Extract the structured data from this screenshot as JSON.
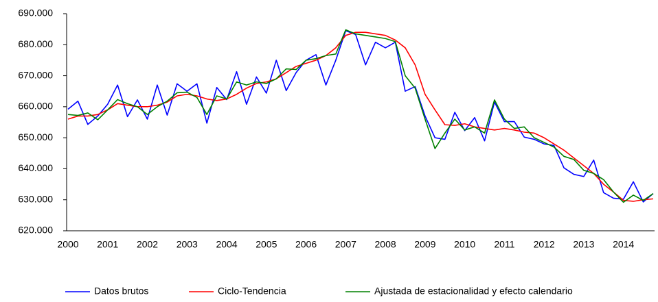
{
  "chart_data": {
    "type": "line",
    "categories": [
      "2000",
      null,
      null,
      null,
      "2001",
      null,
      null,
      null,
      "2002",
      null,
      null,
      null,
      "2003",
      null,
      null,
      null,
      "2004",
      null,
      null,
      null,
      "2005",
      null,
      null,
      null,
      "2006",
      null,
      null,
      null,
      "2007",
      null,
      null,
      null,
      "2008",
      null,
      null,
      null,
      "2009",
      null,
      null,
      null,
      "2010",
      null,
      null,
      null,
      "2011",
      null,
      null,
      null,
      "2012",
      null,
      null,
      null,
      "2013",
      null,
      null,
      null,
      "2014",
      null,
      null,
      null
    ],
    "series": [
      {
        "name": "Datos brutos",
        "color": "#0000ff",
        "values": [
          659200,
          661800,
          654300,
          657000,
          660800,
          667000,
          656800,
          662200,
          656000,
          667000,
          657300,
          667400,
          665000,
          667400,
          654700,
          666200,
          662300,
          671300,
          660800,
          669600,
          664400,
          675000,
          665200,
          671000,
          675000,
          676800,
          667000,
          675000,
          684500,
          683300,
          673500,
          680800,
          679000,
          680800,
          665000,
          666500,
          657000,
          650000,
          649500,
          658200,
          652300,
          656500,
          649000,
          661500,
          655200,
          655200,
          650200,
          649500,
          648000,
          647500,
          640300,
          638200,
          637500,
          642800,
          632300,
          630500,
          630200,
          635800,
          629300,
          632000
        ]
      },
      {
        "name": "Ciclo-Tendencia",
        "color": "#ff0000",
        "values": [
          656000,
          657000,
          657000,
          657500,
          659000,
          661000,
          660500,
          660000,
          660000,
          660500,
          661500,
          663500,
          664000,
          663500,
          662500,
          662000,
          662500,
          664000,
          666000,
          667500,
          668000,
          669000,
          671000,
          673000,
          674000,
          675000,
          676500,
          679000,
          683000,
          684000,
          684000,
          683500,
          683000,
          681500,
          679000,
          673500,
          664000,
          659000,
          654200,
          654000,
          654500,
          653500,
          653000,
          652500,
          653000,
          652500,
          651800,
          651500,
          650000,
          648000,
          646000,
          643500,
          641000,
          638500,
          635000,
          632500,
          629800,
          629500,
          630000,
          630300
        ]
      },
      {
        "name": "Ajustada de estacionalidad y efecto calendario",
        "color": "#008000",
        "values": [
          657500,
          657200,
          658000,
          655800,
          659000,
          662300,
          661000,
          660000,
          657500,
          660000,
          661800,
          664500,
          664700,
          663000,
          657500,
          663500,
          662500,
          668000,
          667000,
          668000,
          667500,
          669000,
          672200,
          672000,
          675000,
          675500,
          676500,
          677000,
          684800,
          683500,
          683000,
          682500,
          682000,
          681000,
          670000,
          666000,
          656000,
          646500,
          651500,
          656000,
          652500,
          653500,
          651500,
          662200,
          656000,
          653000,
          653500,
          650000,
          648500,
          647000,
          644000,
          643000,
          639500,
          638500,
          636500,
          632500,
          629200,
          631500,
          629800,
          632000
        ]
      }
    ],
    "ylim": [
      620000,
      690000
    ],
    "yticks": [
      {
        "value": 620000,
        "label": "620.000"
      },
      {
        "value": 630000,
        "label": "630.000"
      },
      {
        "value": 640000,
        "label": "640.000"
      },
      {
        "value": 650000,
        "label": "650.000"
      },
      {
        "value": 660000,
        "label": "660.000"
      },
      {
        "value": 670000,
        "label": "670.000"
      },
      {
        "value": 680000,
        "label": "680.000"
      },
      {
        "value": 690000,
        "label": "690.000"
      }
    ],
    "legend": "bottom"
  }
}
